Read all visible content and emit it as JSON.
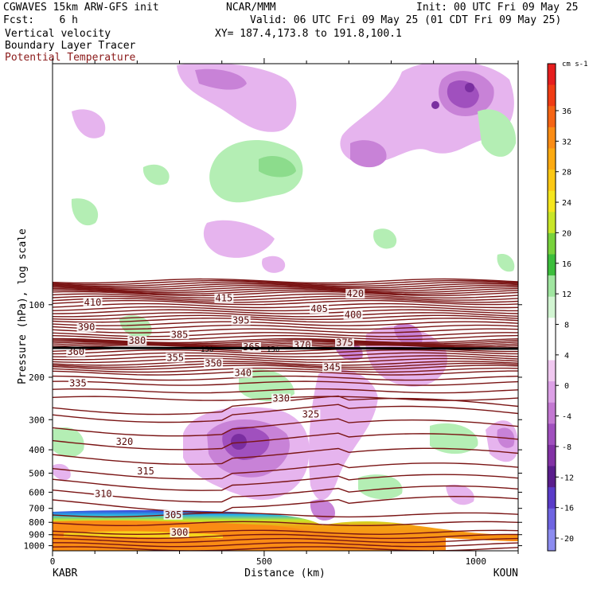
{
  "header": {
    "model": "CGWAVES 15km ARW-GFS init",
    "org": "NCAR/MMM",
    "init": "Init: 00 UTC Fri 09 May 25",
    "fcst": "Fcst:    6 h",
    "valid": "Valid: 06 UTC Fri 09 May 25 (01 CDT Fri 09 May 25)",
    "xy": "XY= 187.4,173.8 to 191.8,100.1",
    "fields": [
      "Vertical velocity",
      "Boundary Layer Tracer",
      "Potential Temperature"
    ],
    "field_colors": [
      "#000000",
      "#000000",
      "#8b1a1a"
    ]
  },
  "chart_data": {
    "type": "heatmap",
    "title": "",
    "xlabel": "Distance (km)",
    "ylabel": "Pressure (hPa), log scale",
    "x_range": [
      0,
      1100
    ],
    "x_ticks": [
      0,
      500,
      1000
    ],
    "x_endpoints": [
      "KABR",
      "KOUN"
    ],
    "y_scale": "log",
    "y_range": [
      1050,
      10
    ],
    "y_ticks": [
      1000,
      900,
      800,
      700,
      600,
      500,
      400,
      300,
      200,
      100
    ],
    "colorbar": {
      "unit": "cm s-1",
      "labels": [
        36,
        32,
        28,
        24,
        20,
        16,
        12,
        8,
        4,
        0,
        -4,
        -8,
        -12,
        -16,
        -20
      ],
      "colors": [
        "#e61e1e",
        "#f03c14",
        "#f56414",
        "#fa8c14",
        "#fcaa10",
        "#fcc814",
        "#f5e61e",
        "#c8e628",
        "#78d23c",
        "#3cbe3c",
        "#a0e6a0",
        "#d2f5d2",
        "#ffffff",
        "#ffffff",
        "#f0c8f0",
        "#dca0e6",
        "#c378d2",
        "#a050be",
        "#8232a5",
        "#5a1e8c",
        "#5a3cc8",
        "#6e64e1",
        "#8c8cf0"
      ]
    },
    "isentropes": [
      {
        "theta": 300,
        "label_at_x": 300
      },
      {
        "theta": 305,
        "label_at_x": 285
      },
      {
        "theta": 310,
        "label_at_x": 120
      },
      {
        "theta": 315,
        "label_at_x": 220
      },
      {
        "theta": 320,
        "label_at_x": 170
      },
      {
        "theta": 325,
        "label_at_x": 610
      },
      {
        "theta": 330,
        "label_at_x": 540
      },
      {
        "theta": 335,
        "label_at_x": 60
      },
      {
        "theta": 340,
        "label_at_x": 450
      },
      {
        "theta": 345,
        "label_at_x": 660
      },
      {
        "theta": 350,
        "label_at_x": 380
      },
      {
        "theta": 355,
        "label_at_x": 290
      },
      {
        "theta": 360,
        "label_at_x": 55
      },
      {
        "theta": 365,
        "label_at_x": 470
      },
      {
        "theta": 370,
        "label_at_x": 590
      },
      {
        "theta": 375,
        "label_at_x": 690
      },
      {
        "theta": 380,
        "label_at_x": 200
      },
      {
        "theta": 385,
        "label_at_x": 300
      },
      {
        "theta": 390,
        "label_at_x": 80
      },
      {
        "theta": 395,
        "label_at_x": 445
      },
      {
        "theta": 400,
        "label_at_x": 710
      },
      {
        "theta": 405,
        "label_at_x": 630
      },
      {
        "theta": 410,
        "label_at_x": 95
      },
      {
        "theta": 415,
        "label_at_x": 405
      },
      {
        "theta": 420,
        "label_at_x": 715
      }
    ],
    "extra_labels": [
      "150",
      "150",
      "300",
      "310",
      "325",
      "335",
      "340",
      "345",
      "355",
      "360",
      "380",
      "385",
      "390",
      "400",
      "405",
      "410"
    ]
  }
}
